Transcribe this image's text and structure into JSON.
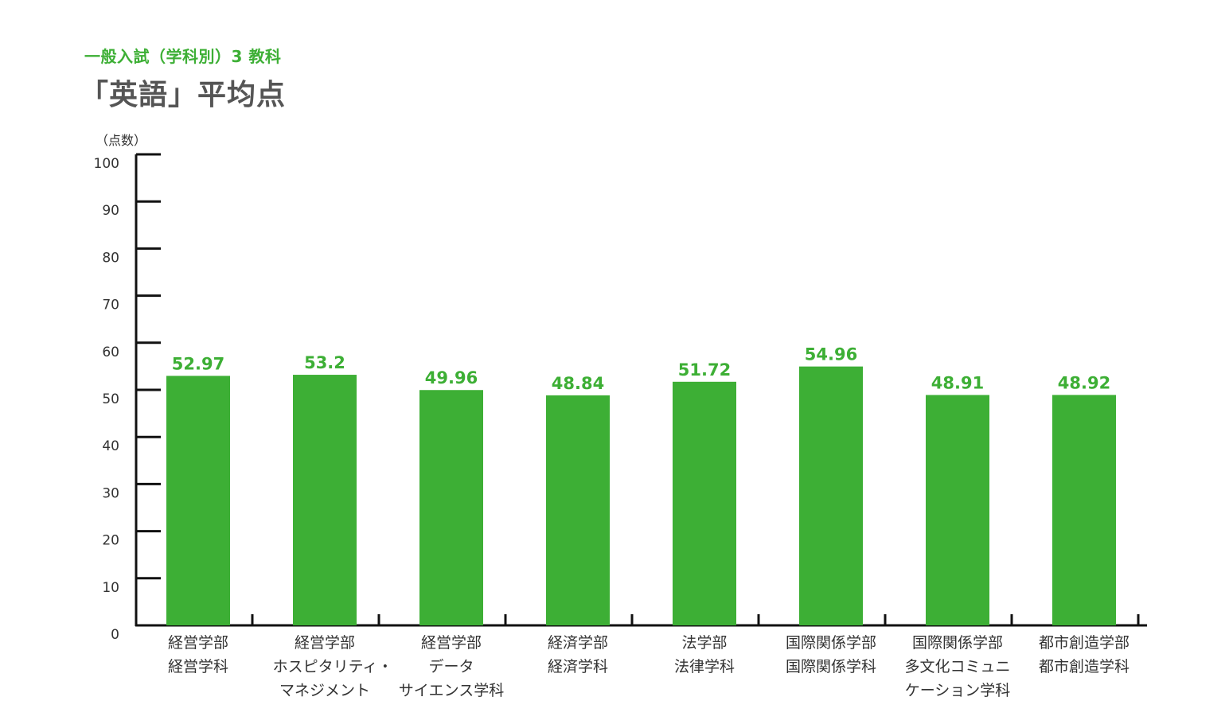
{
  "header": {
    "subtitle": "一般入試（学科別）3 教科",
    "title": "「英語」平均点"
  },
  "chart_data": {
    "type": "bar",
    "y_unit": "（点数）",
    "ylim": [
      0,
      100
    ],
    "y_ticks": [
      "0",
      "10",
      "20",
      "30",
      "40",
      "50",
      "60",
      "70",
      "80",
      "90",
      "100"
    ],
    "bar_color": "#3daf35",
    "categories": [
      [
        "経営学部",
        "経営学科"
      ],
      [
        "経営学部",
        "ホスピタリティ・",
        "マネジメント"
      ],
      [
        "経営学部",
        "データ",
        "サイエンス学科"
      ],
      [
        "経済学部",
        "経済学科"
      ],
      [
        "法学部",
        "法律学科"
      ],
      [
        "国際関係学部",
        "国際関係学科"
      ],
      [
        "国際関係学部",
        "多文化コミュニ",
        "ケーション学科"
      ],
      [
        "都市創造学部",
        "都市創造学科"
      ]
    ],
    "values": [
      52.97,
      53.2,
      49.96,
      48.84,
      51.72,
      54.96,
      48.91,
      48.92
    ],
    "value_labels": [
      "52.97",
      "53.2",
      "49.96",
      "48.84",
      "51.72",
      "54.96",
      "48.91",
      "48.92"
    ]
  }
}
